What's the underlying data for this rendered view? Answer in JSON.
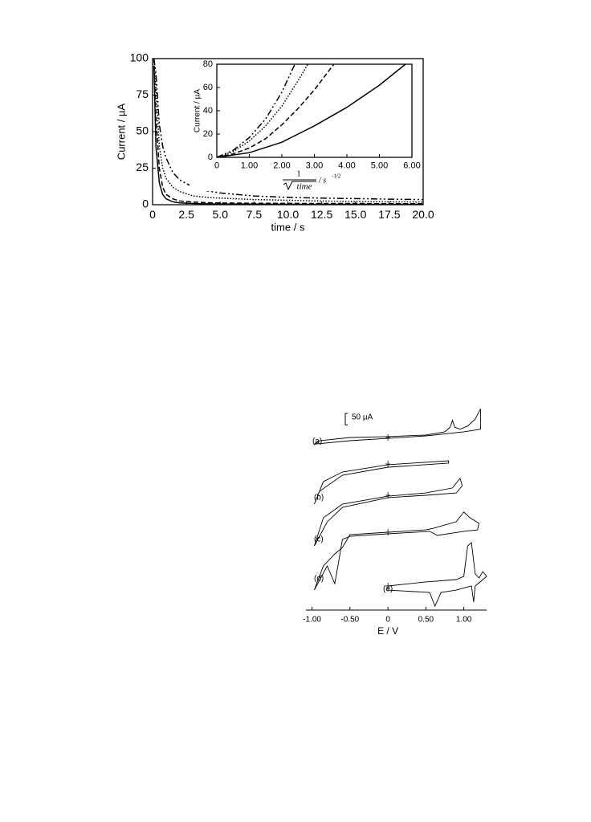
{
  "chart_data": [
    {
      "type": "line",
      "x_label": "time / s",
      "y_label": "Current / µA",
      "xlim": [
        0,
        20
      ],
      "ylim": [
        0,
        100
      ],
      "xticks": [
        0,
        2.5,
        {
          "value": 5,
          "label": "5.0"
        },
        7.5,
        {
          "value": 10,
          "label": "10.0"
        },
        12.5,
        {
          "value": 15,
          "label": "15.0"
        },
        17.5,
        {
          "value": 20,
          "label": "20.0"
        }
      ],
      "yticks": [
        0,
        25,
        50,
        75,
        100
      ],
      "x": [
        0.1,
        0.25,
        0.5,
        0.75,
        1,
        1.5,
        2,
        3,
        4,
        5,
        7.5,
        10,
        12.5,
        15,
        17.5,
        20
      ],
      "series": [
        {
          "style": "solid",
          "color": "#000000",
          "values": [
            95,
            40,
            15,
            7,
            4,
            2,
            1.2,
            0.8,
            0.6,
            0.5,
            0.4,
            0.3,
            0.3,
            0.3,
            0.3,
            0.3
          ]
        },
        {
          "style": "dashed",
          "color": "#000000",
          "values": [
            100,
            60,
            25,
            12,
            7,
            4,
            2.5,
            1.8,
            1.4,
            1.2,
            1,
            0.9,
            0.8,
            0.8,
            0.7,
            0.7
          ]
        },
        {
          "style": "dotted",
          "color": "#000000",
          "values": [
            100,
            80,
            40,
            25,
            18,
            12,
            9,
            6,
            5,
            4.5,
            3.5,
            3,
            2.5,
            2.2,
            2,
            1.8
          ]
        },
        {
          "style": "dashdot",
          "color": "#000000",
          "values": [
            100,
            90,
            55,
            40,
            32,
            22,
            17,
            12,
            9.5,
            8,
            6,
            5,
            4.5,
            4.2,
            3.8,
            3.5
          ]
        }
      ]
    },
    {
      "type": "line",
      "y_label": "Current / µA",
      "x_label_numerator": "1",
      "x_label_denominator": "time",
      "x_label_unit": "/ s",
      "x_label_exponent": "-1/2",
      "xlim": [
        0,
        6
      ],
      "ylim": [
        0,
        80
      ],
      "xticks": [
        0,
        {
          "value": 1,
          "label": "1.00"
        },
        {
          "value": 2,
          "label": "2.00"
        },
        {
          "value": 3,
          "label": "3.00"
        },
        {
          "value": 4,
          "label": "4.00"
        },
        {
          "value": 5,
          "label": "5.00"
        },
        {
          "value": 6,
          "label": "6.00"
        }
      ],
      "yticks": [
        0,
        20,
        40,
        60,
        80
      ],
      "series": [
        {
          "style": "solid",
          "color": "#000000",
          "x": [
            0,
            1,
            2,
            3,
            4,
            5,
            5.8
          ],
          "values": [
            0,
            4,
            13,
            27,
            43,
            62,
            80
          ]
        },
        {
          "style": "dashed",
          "color": "#000000",
          "x": [
            0,
            0.5,
            1,
            1.5,
            2,
            2.5,
            3,
            3.6
          ],
          "values": [
            0,
            3,
            8,
            16,
            28,
            42,
            58,
            80
          ]
        },
        {
          "style": "dotted",
          "color": "#000000",
          "x": [
            0,
            0.5,
            1,
            1.5,
            2,
            2.5,
            2.8
          ],
          "values": [
            0,
            5,
            14,
            27,
            44,
            66,
            80
          ]
        },
        {
          "style": "dashdot",
          "color": "#000000",
          "x": [
            0,
            0.5,
            1,
            1.5,
            2,
            2.4
          ],
          "values": [
            0,
            6,
            17,
            33,
            56,
            80
          ]
        }
      ]
    },
    {
      "type": "cv",
      "x_label": "E / V",
      "xlim": [
        -1.08,
        1.3
      ],
      "xticks": [
        {
          "value": -1,
          "label": "-1.00"
        },
        {
          "value": -0.5,
          "label": "-0.50"
        },
        0,
        {
          "value": 0.5,
          "label": "0.50"
        },
        {
          "value": 1,
          "label": "1.00"
        }
      ],
      "scale_bar": {
        "value": 50,
        "label": "50 µA"
      },
      "series": [
        {
          "name": "(a)",
          "x": [
            -0.97,
            -0.9,
            -0.5,
            0,
            0.5,
            0.75,
            0.82,
            0.85,
            0.88,
            0.95,
            1.05,
            1.15,
            1.22,
            1.22,
            1,
            0.5,
            0,
            -0.5,
            -0.97
          ],
          "values": [
            -29,
            -14,
            0,
            4,
            11,
            25,
            45,
            75,
            45,
            36,
            50,
            80,
            125,
            36,
            25,
            7,
            -4,
            -14,
            -29
          ]
        },
        {
          "name": "(b)",
          "x": [
            -0.97,
            -0.85,
            -0.6,
            0,
            0.8,
            0.8,
            0,
            -0.6,
            -0.9,
            -0.97
          ],
          "values": [
            -175,
            -77,
            -35,
            -3,
            14,
            4,
            -14,
            -49,
            -119,
            -175
          ]
        },
        {
          "name": "(c)",
          "x": [
            -0.97,
            -0.85,
            -0.6,
            0,
            0.5,
            0.85,
            0.95,
            0.98,
            0.9,
            0.5,
            0,
            -0.6,
            -0.8,
            -0.97
          ],
          "values": [
            -221,
            -98,
            -39,
            -4,
            10,
            32,
            74,
            42,
            10,
            0,
            -10,
            -53,
            -116,
            -221
          ]
        },
        {
          "name": "(d)",
          "x": [
            -0.97,
            -0.85,
            -0.7,
            -0.6,
            -0.5,
            0,
            0.5,
            0.6,
            0.9,
            1,
            1.08,
            1.2,
            1.18,
            1,
            0.65,
            0.55,
            0,
            -0.5,
            -0.6,
            -0.65,
            -0.7,
            -0.8,
            -0.97
          ],
          "values": [
            -252,
            -147,
            -95,
            -67,
            -11,
            0,
            10,
            17,
            46,
            88,
            63,
            39,
            10,
            4,
            -14,
            4,
            -7,
            -18,
            -32,
            -130,
            -224,
            -147,
            -252
          ]
        },
        {
          "name": "(e)",
          "x": [
            0,
            0.5,
            0.9,
            1,
            1.05,
            1.1,
            1.15,
            1.2,
            1.25,
            1.3,
            1.25,
            1.15,
            1.13,
            1.1,
            0.9,
            0.7,
            0.62,
            0.55,
            0,
            0
          ],
          "values": [
            0,
            18,
            28,
            42,
            175,
            189,
            53,
            35,
            63,
            42,
            28,
            0,
            -70,
            0,
            -18,
            -28,
            -88,
            -28,
            -18,
            0
          ]
        }
      ]
    }
  ]
}
